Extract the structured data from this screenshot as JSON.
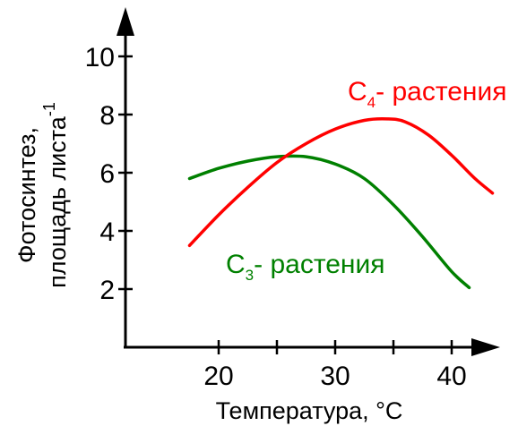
{
  "chart_data": {
    "type": "line",
    "xlabel": "Температура, °C",
    "ylabel_line1": "Фотосинтез,",
    "ylabel_line2_main": "площадь листа",
    "ylabel_line2_sup": "-1",
    "xlim": [
      12,
      48
    ],
    "ylim": [
      0,
      11.5
    ],
    "x_ticks": [
      20,
      25,
      30,
      35,
      40
    ],
    "x_tick_labels": [
      "20",
      "",
      "30",
      "",
      "40"
    ],
    "y_ticks": [
      2,
      4,
      6,
      8,
      10
    ],
    "y_tick_labels": [
      "2",
      "4",
      "6",
      "8",
      "10"
    ],
    "series": [
      {
        "name_main": "C",
        "name_sub": "3",
        "name_rest": "- растения",
        "color": "#008000",
        "x": [
          17.5,
          20,
          22.5,
          25,
          27.5,
          30,
          32.5,
          35,
          37.5,
          40,
          41.5
        ],
        "y": [
          5.8,
          6.15,
          6.4,
          6.55,
          6.55,
          6.3,
          5.8,
          4.9,
          3.8,
          2.6,
          2.05
        ]
      },
      {
        "name_main": "C",
        "name_sub": "4",
        "name_rest": "- растения",
        "color": "#ff0000",
        "x": [
          17.5,
          20,
          22.5,
          25,
          27.5,
          30,
          32.5,
          34.5,
          36,
          38,
          40,
          42,
          43.5
        ],
        "y": [
          3.5,
          4.55,
          5.5,
          6.35,
          7.0,
          7.5,
          7.8,
          7.85,
          7.75,
          7.3,
          6.6,
          5.8,
          5.3
        ]
      }
    ]
  }
}
